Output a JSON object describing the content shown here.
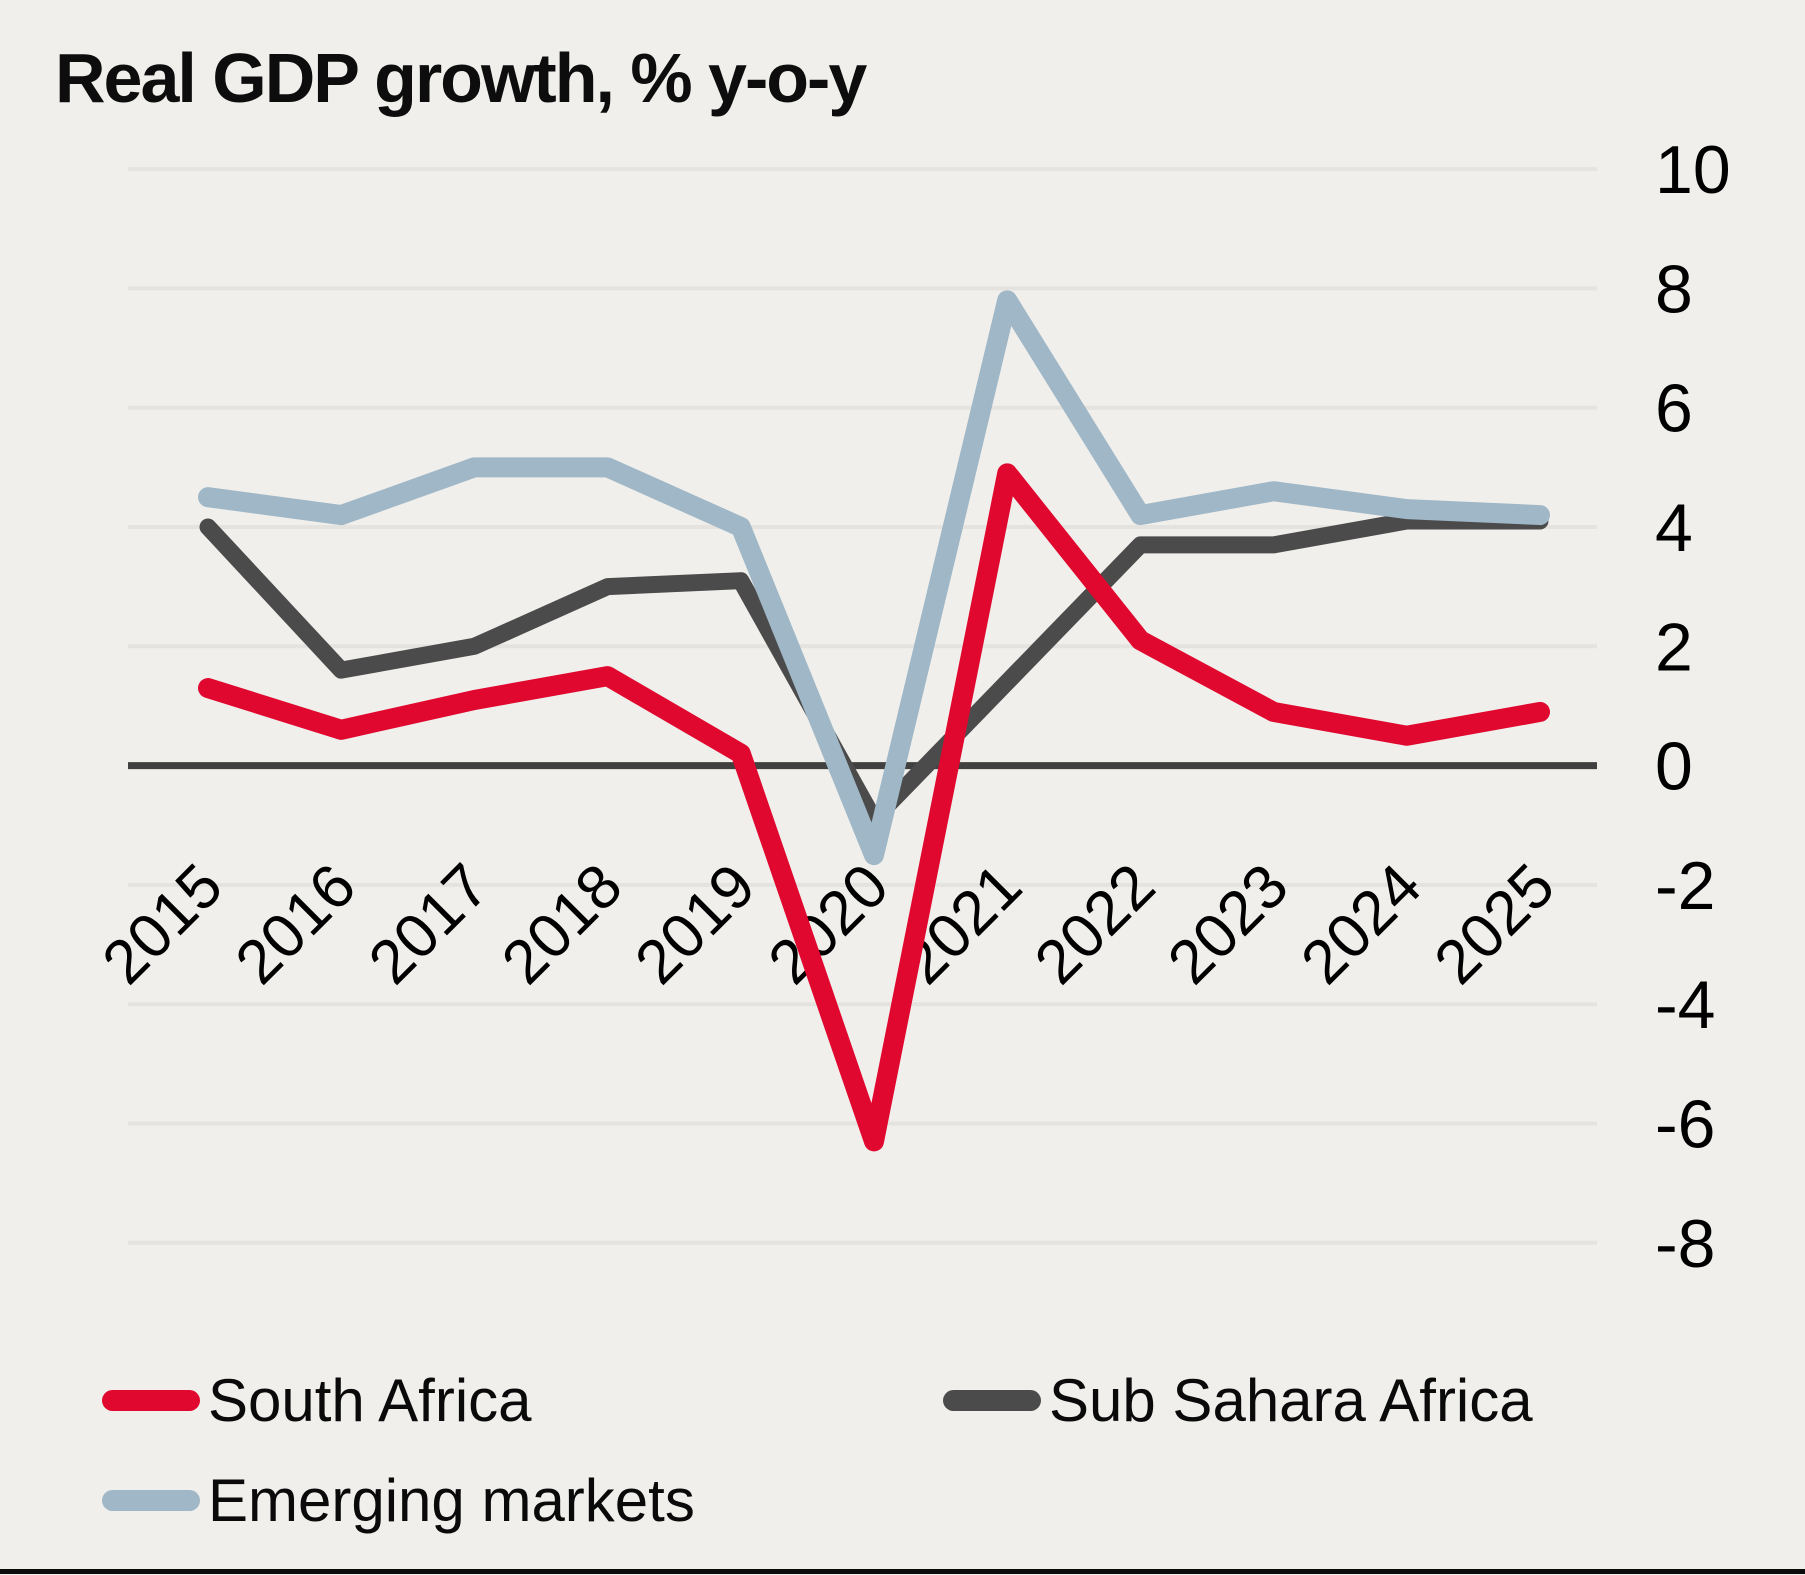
{
  "title": "Real GDP growth, % y-o-y",
  "chart_data": {
    "type": "line",
    "categories": [
      "2015",
      "2016",
      "2017",
      "2018",
      "2019",
      "2020",
      "2021",
      "2022",
      "2023",
      "2024",
      "2025"
    ],
    "series": [
      {
        "name": "South Africa",
        "color": "#e0082f",
        "width": 20,
        "values": [
          1.3,
          0.6,
          1.1,
          1.5,
          0.2,
          -6.3,
          4.9,
          2.1,
          0.9,
          0.5,
          0.9
        ]
      },
      {
        "name": "Sub Sahara Africa",
        "color": "#4b4b4b",
        "width": 17,
        "values": [
          4.0,
          1.6,
          2.0,
          3.0,
          3.1,
          -0.9,
          1.4,
          3.7,
          3.7,
          4.1,
          4.1
        ]
      },
      {
        "name": "Emerging markets",
        "color": "#9fb7c6",
        "width": 20,
        "values": [
          4.5,
          4.2,
          5.0,
          5.0,
          4.0,
          -1.5,
          7.8,
          4.2,
          4.6,
          4.3,
          4.2
        ]
      }
    ],
    "draw_order": [
      "Sub Sahara Africa",
      "Emerging markets",
      "South Africa"
    ],
    "title": "Real GDP growth, % y-o-y",
    "xlabel": "",
    "ylabel": "",
    "ylim": [
      -8,
      10
    ],
    "ytick_values": [
      10,
      8,
      6,
      4,
      2,
      0,
      -2,
      -4,
      -6,
      -8
    ],
    "ytick_labels": [
      "10",
      "8",
      "6",
      "4",
      "2",
      "0",
      "-2",
      "-4",
      "-6",
      "-8"
    ],
    "y_axis_side": "right",
    "grid": true,
    "zero_line": true,
    "legend_position": "bottom"
  },
  "colors": {
    "background": "#f0efec",
    "gridline": "#e4e3e0",
    "zero_line": "#404040",
    "text": "#000000",
    "bottom_rule": "#0b0b0b"
  },
  "legend": {
    "items": [
      {
        "label": "South Africa",
        "color": "#e0082f"
      },
      {
        "label": "Sub Sahara Africa",
        "color": "#4b4b4b"
      },
      {
        "label": "Emerging markets",
        "color": "#9fb7c6"
      }
    ]
  }
}
